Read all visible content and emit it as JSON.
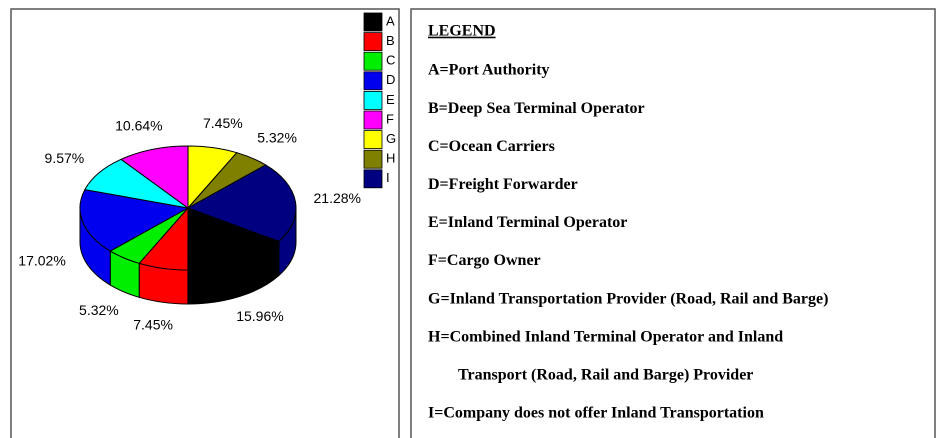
{
  "chart_data": {
    "type": "pie",
    "categories": [
      "A",
      "B",
      "C",
      "D",
      "E",
      "F",
      "G",
      "H",
      "I"
    ],
    "values": [
      15.96,
      7.45,
      5.32,
      17.02,
      9.57,
      10.64,
      7.45,
      5.32,
      21.28
    ],
    "value_labels": [
      "15.96%",
      "7.45%",
      "5.32%",
      "17.02%",
      "9.57%",
      "10.64%",
      "7.45%",
      "5.32%",
      "21.28%"
    ],
    "colors": [
      "#000000",
      "#ff0000",
      "#00ee00",
      "#0000ee",
      "#00ffff",
      "#ff00ff",
      "#ffff00",
      "#808000",
      "#000080"
    ]
  },
  "legend_box": {
    "title": "LEGEND",
    "lines": [
      "A=Port  Authority",
      "B=Deep Sea Terminal Operator",
      "C=Ocean Carriers",
      "D=Freight  Forwarder",
      "E=Inland Terminal Operator",
      "F=Cargo Owner",
      "G=Inland Transportation Provider (Road, Rail and Barge)",
      "H=Combined Inland Terminal Operator and Inland",
      "Transport (Road, Rail and Barge) Provider",
      "I=Company does not offer Inland Transportation"
    ]
  }
}
